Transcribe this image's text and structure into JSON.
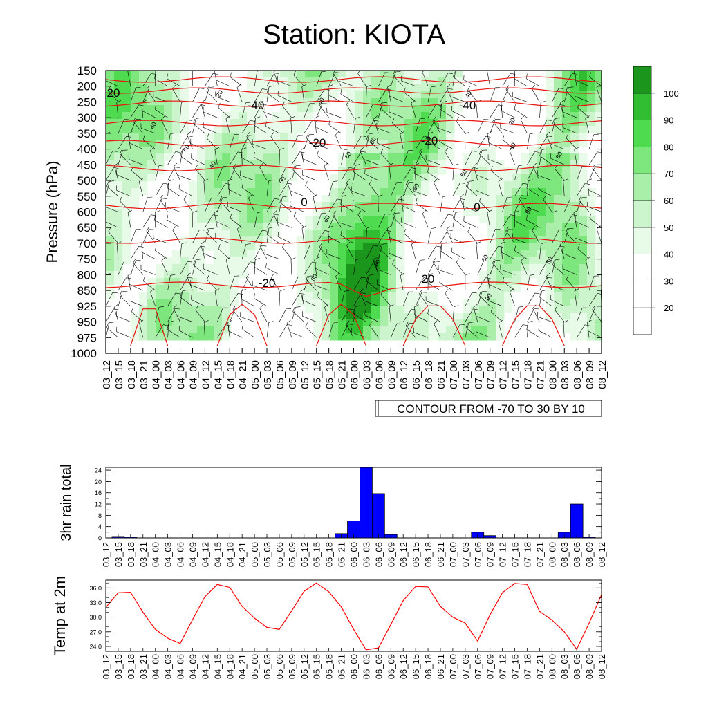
{
  "title": "Station: KIOTA",
  "time_labels": [
    "03_12",
    "03_15",
    "03_18",
    "03_21",
    "04_00",
    "04_03",
    "04_06",
    "04_09",
    "04_12",
    "04_15",
    "04_18",
    "04_21",
    "05_00",
    "05_03",
    "05_06",
    "05_09",
    "05_12",
    "05_15",
    "05_18",
    "05_21",
    "06_00",
    "06_03",
    "06_06",
    "06_09",
    "06_12",
    "06_15",
    "06_18",
    "06_21",
    "07_00",
    "07_03",
    "07_06",
    "07_09",
    "07_12",
    "07_15",
    "07_18",
    "07_21",
    "08_00",
    "08_03",
    "08_06",
    "08_09",
    "08_12"
  ],
  "chart_data": [
    {
      "type": "heatmap",
      "ylabel": "Pressure (hPa)",
      "y_ticks": [
        "150",
        "200",
        "250",
        "300",
        "350",
        "400",
        "450",
        "500",
        "550",
        "600",
        "650",
        "700",
        "750",
        "800",
        "850",
        "925",
        "950",
        "975",
        "1000"
      ],
      "note": "CONTOUR FROM -70 TO 30 BY 10",
      "colorbar_levels": [
        "20",
        "30",
        "40",
        "50",
        "60",
        "70",
        "80",
        "90",
        "100"
      ],
      "colorbar_colors": [
        "#ffffff",
        "#ffffff",
        "#ffffff",
        "#e8fbe8",
        "#cdf5cd",
        "#a9eea9",
        "#7de77d",
        "#4fdb4f",
        "#31bd31",
        "#1c951c"
      ],
      "temperature_contour_color": "#e8140f",
      "temperature_contour_labels": [
        "-40",
        "-40",
        "-20",
        "-20",
        "0",
        "0",
        "-20",
        "20",
        "20"
      ],
      "humidity_contour_labels": [
        "20",
        "40",
        "60",
        "40",
        "80",
        "60",
        "60",
        "60",
        "80",
        "60",
        "40",
        "20",
        "40",
        "60",
        "80",
        "80",
        "60",
        "60",
        "80",
        "60",
        "80"
      ]
    },
    {
      "type": "bar",
      "ylabel": "3hr rain total",
      "y_ticks": [
        "0",
        "4",
        "8",
        "12",
        "16",
        "20",
        "24"
      ],
      "ylim": [
        0,
        25
      ],
      "bar_color": "#0000ff",
      "values": [
        0,
        0.5,
        0.3,
        0,
        0,
        0,
        0,
        0,
        0,
        0,
        0,
        0,
        0,
        0,
        0,
        0,
        0,
        0,
        0,
        1.5,
        6,
        25,
        15.7,
        1.2,
        0,
        0,
        0,
        0,
        0,
        0,
        2,
        0.8,
        0,
        0,
        0,
        0,
        0,
        2,
        12,
        0.3,
        0
      ]
    },
    {
      "type": "line",
      "ylabel": "Temp at 2m",
      "y_ticks": [
        "24.0",
        "27.0",
        "30.0",
        "33.0",
        "36.0"
      ],
      "ylim": [
        23,
        37.6
      ],
      "line_color": "#ff0000",
      "values": [
        32.0,
        35.0,
        35.1,
        31.0,
        27.5,
        25.7,
        24.6,
        29.5,
        34.2,
        36.7,
        36.1,
        32.2,
        29.8,
        27.9,
        27.5,
        31.3,
        35.3,
        37.0,
        35.2,
        32.1,
        27.5,
        23.3,
        23.7,
        28.5,
        33.4,
        36.3,
        36.2,
        32.2,
        30.0,
        28.8,
        25.1,
        30.5,
        35.0,
        36.9,
        36.7,
        31.2,
        29.4,
        27.0,
        23.4,
        28.8,
        34.6
      ]
    }
  ]
}
